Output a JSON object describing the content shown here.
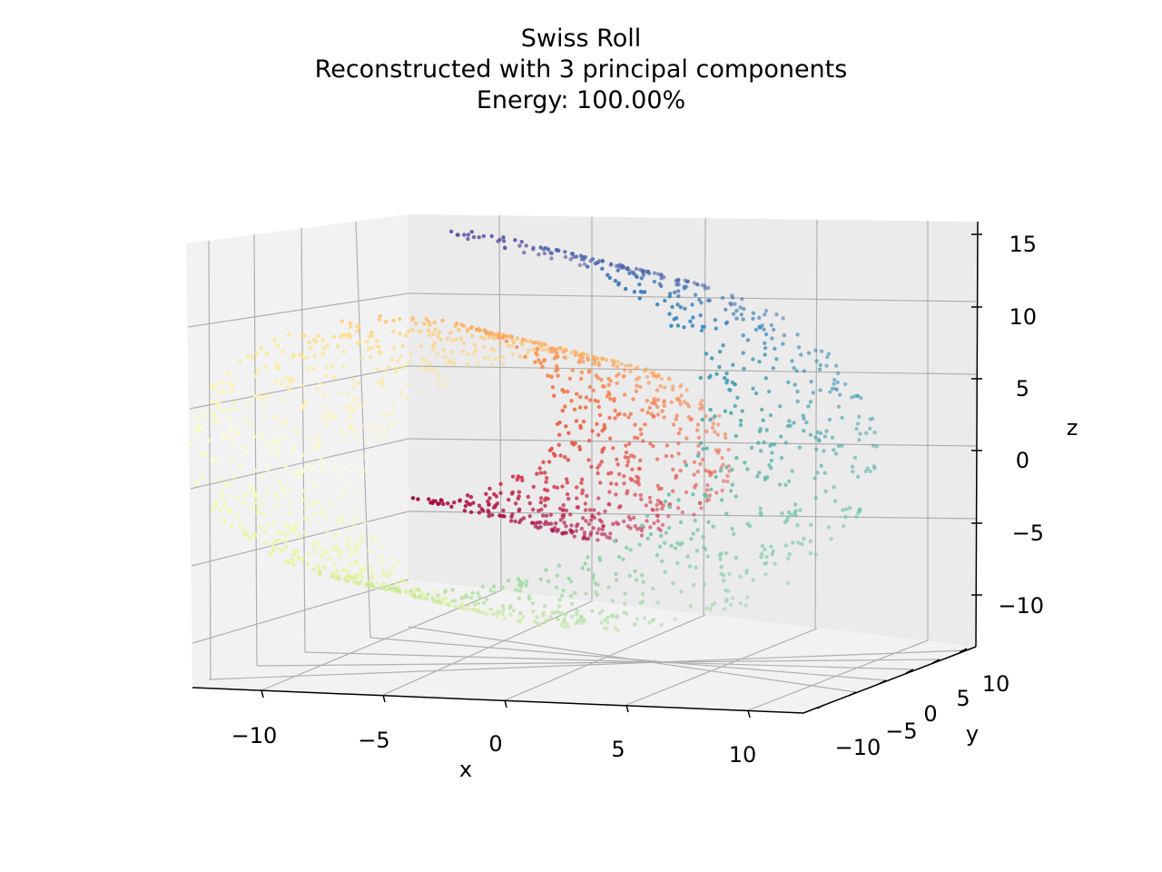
{
  "title_lines": [
    "Swiss Roll",
    "Reconstructed with 3 principal components",
    "Energy: 100.00%"
  ],
  "chart_data": {
    "type": "scatter",
    "projection": "3d",
    "title": "Swiss Roll\nReconstructed with 3 principal components\nEnergy: 100.00%",
    "xlabel": "x",
    "ylabel": "y",
    "zlabel": "z",
    "xlim": [
      -13,
      13
    ],
    "ylim": [
      -13,
      13
    ],
    "zlim": [
      -13,
      16
    ],
    "x_ticks": [
      -10,
      -5,
      0,
      5,
      10
    ],
    "y_ticks": [
      -10,
      -5,
      0,
      5,
      10
    ],
    "z_ticks": [
      -10,
      -5,
      0,
      5,
      10,
      15
    ],
    "x_tick_labels": [
      "−10",
      "−5",
      "0",
      "5",
      "10"
    ],
    "y_tick_labels": [
      "−10",
      "−5",
      "0",
      "5",
      "10"
    ],
    "z_tick_labels": [
      "−10",
      "−5",
      "0",
      "5",
      "10",
      "15"
    ],
    "grid": true,
    "colormap": "Spectral",
    "colormap_stops": [
      "#9e0142",
      "#d53e4f",
      "#f46d43",
      "#fdae61",
      "#fee08b",
      "#ffffbf",
      "#e6f598",
      "#abdda4",
      "#66c2a5",
      "#3288bd",
      "#5e4fa2"
    ],
    "series": [
      {
        "color_variable": "t",
        "t_range": [
          4.71,
          14.14
        ],
        "height_range": [
          -13,
          13
        ],
        "n_points": 2000,
        "equation": "x = t*cos(t), z = t*sin(t), y = height"
      }
    ]
  }
}
